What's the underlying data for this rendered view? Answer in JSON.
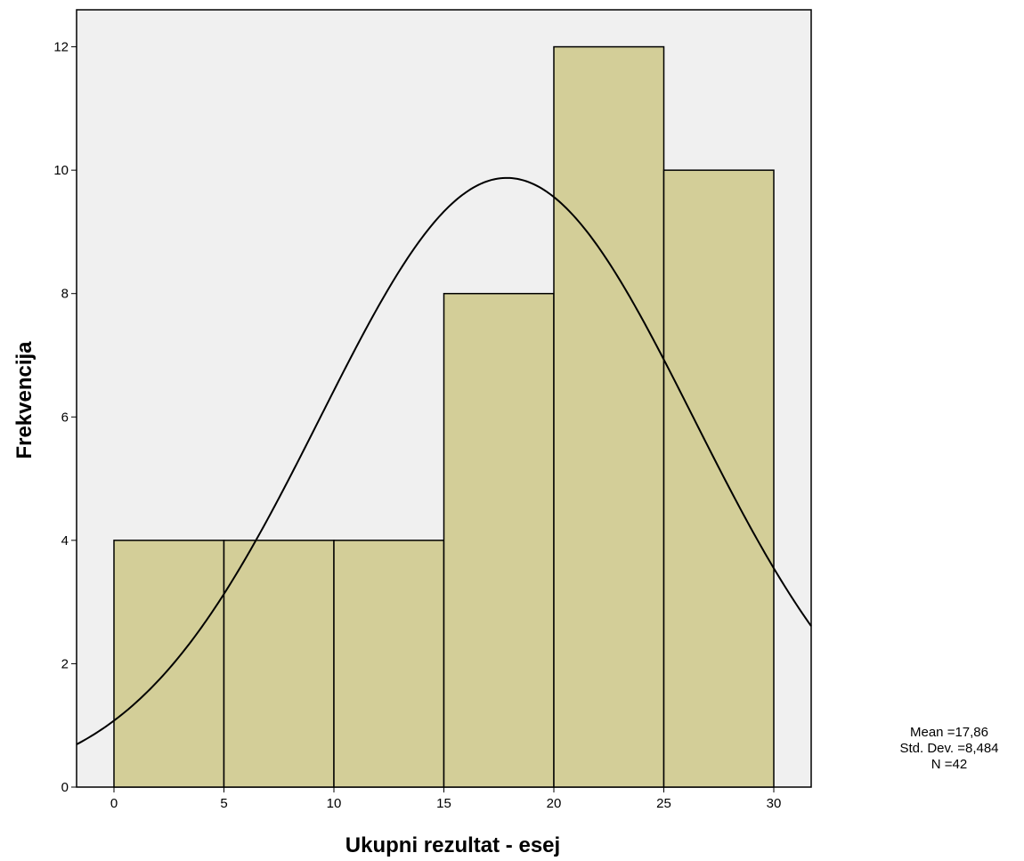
{
  "chart_data": {
    "type": "bar",
    "subtype": "histogram",
    "xlabel": "Ukupni rezultat - esej",
    "ylabel": "Frekvencija",
    "xlim": [
      -1.7,
      31.7
    ],
    "ylim": [
      0,
      12.6
    ],
    "xticks": [
      0,
      5,
      10,
      15,
      20,
      25,
      30
    ],
    "yticks": [
      0,
      2,
      4,
      6,
      8,
      10,
      12
    ],
    "bins": [
      {
        "start": 0,
        "end": 5,
        "count": 4
      },
      {
        "start": 5,
        "end": 10,
        "count": 4
      },
      {
        "start": 10,
        "end": 15,
        "count": 4
      },
      {
        "start": 15,
        "end": 20,
        "count": 8
      },
      {
        "start": 20,
        "end": 25,
        "count": 12
      },
      {
        "start": 25,
        "end": 30,
        "count": 10
      }
    ],
    "normal_curve": {
      "mean": 17.86,
      "sd": 8.484,
      "n": 42,
      "bin_width": 5
    },
    "stats_lines": [
      "Mean =17,86",
      "Std. Dev. =8,484",
      "N =42"
    ],
    "colors": {
      "bar_fill": "#D3CE98",
      "plot_background": "#F0F0F0",
      "curve": "#000000"
    },
    "grid": false,
    "legend": "none"
  }
}
